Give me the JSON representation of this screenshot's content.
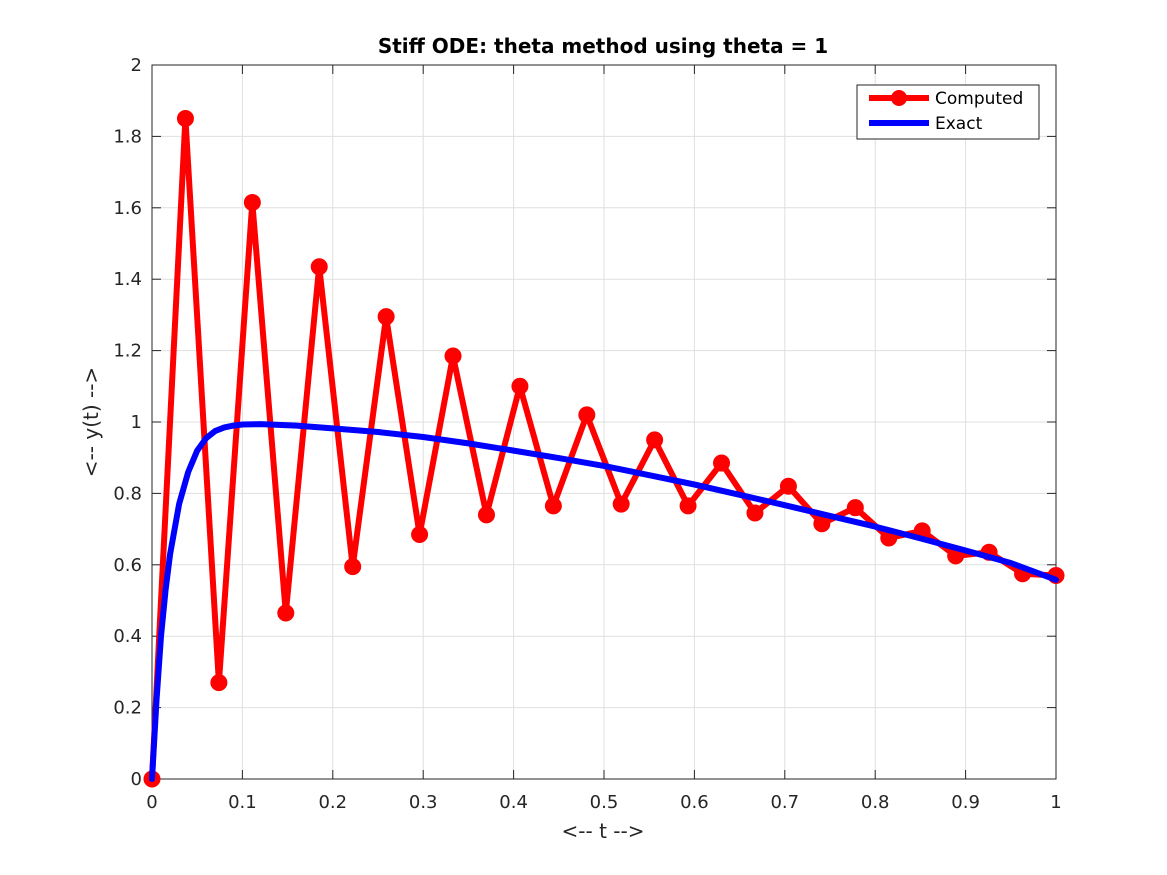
{
  "chart_data": {
    "type": "line",
    "title": "Stiff ODE: theta method using theta = 1",
    "xlabel": "<-- t -->",
    "ylabel": "<-- y(t) -->",
    "xlim": [
      0,
      1
    ],
    "ylim": [
      0,
      2
    ],
    "xticks": [
      0,
      0.1,
      0.2,
      0.3,
      0.4,
      0.5,
      0.6,
      0.7,
      0.8,
      0.9,
      1
    ],
    "xtick_labels": [
      "0",
      "0.1",
      "0.2",
      "0.3",
      "0.4",
      "0.5",
      "0.6",
      "0.7",
      "0.8",
      "0.9",
      "1"
    ],
    "yticks": [
      0,
      0.2,
      0.4,
      0.6,
      0.8,
      1,
      1.2,
      1.4,
      1.6,
      1.8,
      2
    ],
    "ytick_labels": [
      "0",
      "0.2",
      "0.4",
      "0.6",
      "0.8",
      "1",
      "1.2",
      "1.4",
      "1.6",
      "1.8",
      "2"
    ],
    "grid": true,
    "legend_position": "top-right",
    "series": [
      {
        "name": "Computed",
        "color": "#ff0000",
        "marker": "circle",
        "x": [
          0,
          0.037,
          0.074,
          0.111,
          0.148,
          0.185,
          0.222,
          0.259,
          0.296,
          0.333,
          0.37,
          0.407,
          0.444,
          0.481,
          0.519,
          0.556,
          0.593,
          0.63,
          0.667,
          0.704,
          0.741,
          0.778,
          0.815,
          0.852,
          0.889,
          0.926,
          0.963,
          1.0
        ],
        "y": [
          0,
          1.85,
          0.27,
          1.615,
          0.465,
          1.435,
          0.595,
          1.295,
          0.685,
          1.185,
          0.74,
          1.1,
          0.765,
          1.02,
          0.77,
          0.95,
          0.765,
          0.885,
          0.745,
          0.82,
          0.715,
          0.76,
          0.675,
          0.695,
          0.625,
          0.635,
          0.575,
          0.57
        ]
      },
      {
        "name": "Exact",
        "color": "#0000ff",
        "marker": "none",
        "x": [
          0,
          0.005,
          0.01,
          0.015,
          0.02,
          0.03,
          0.04,
          0.05,
          0.06,
          0.07,
          0.08,
          0.09,
          0.1,
          0.12,
          0.14,
          0.16,
          0.2,
          0.25,
          0.3,
          0.35,
          0.4,
          0.45,
          0.5,
          0.55,
          0.6,
          0.65,
          0.7,
          0.75,
          0.8,
          0.85,
          0.9,
          0.95,
          1.0
        ],
        "y": [
          0,
          0.22,
          0.4,
          0.53,
          0.63,
          0.77,
          0.86,
          0.92,
          0.955,
          0.975,
          0.985,
          0.99,
          0.993,
          0.994,
          0.992,
          0.99,
          0.982,
          0.972,
          0.958,
          0.94,
          0.92,
          0.899,
          0.877,
          0.851,
          0.825,
          0.796,
          0.767,
          0.737,
          0.707,
          0.674,
          0.64,
          0.605,
          0.558
        ]
      }
    ]
  }
}
